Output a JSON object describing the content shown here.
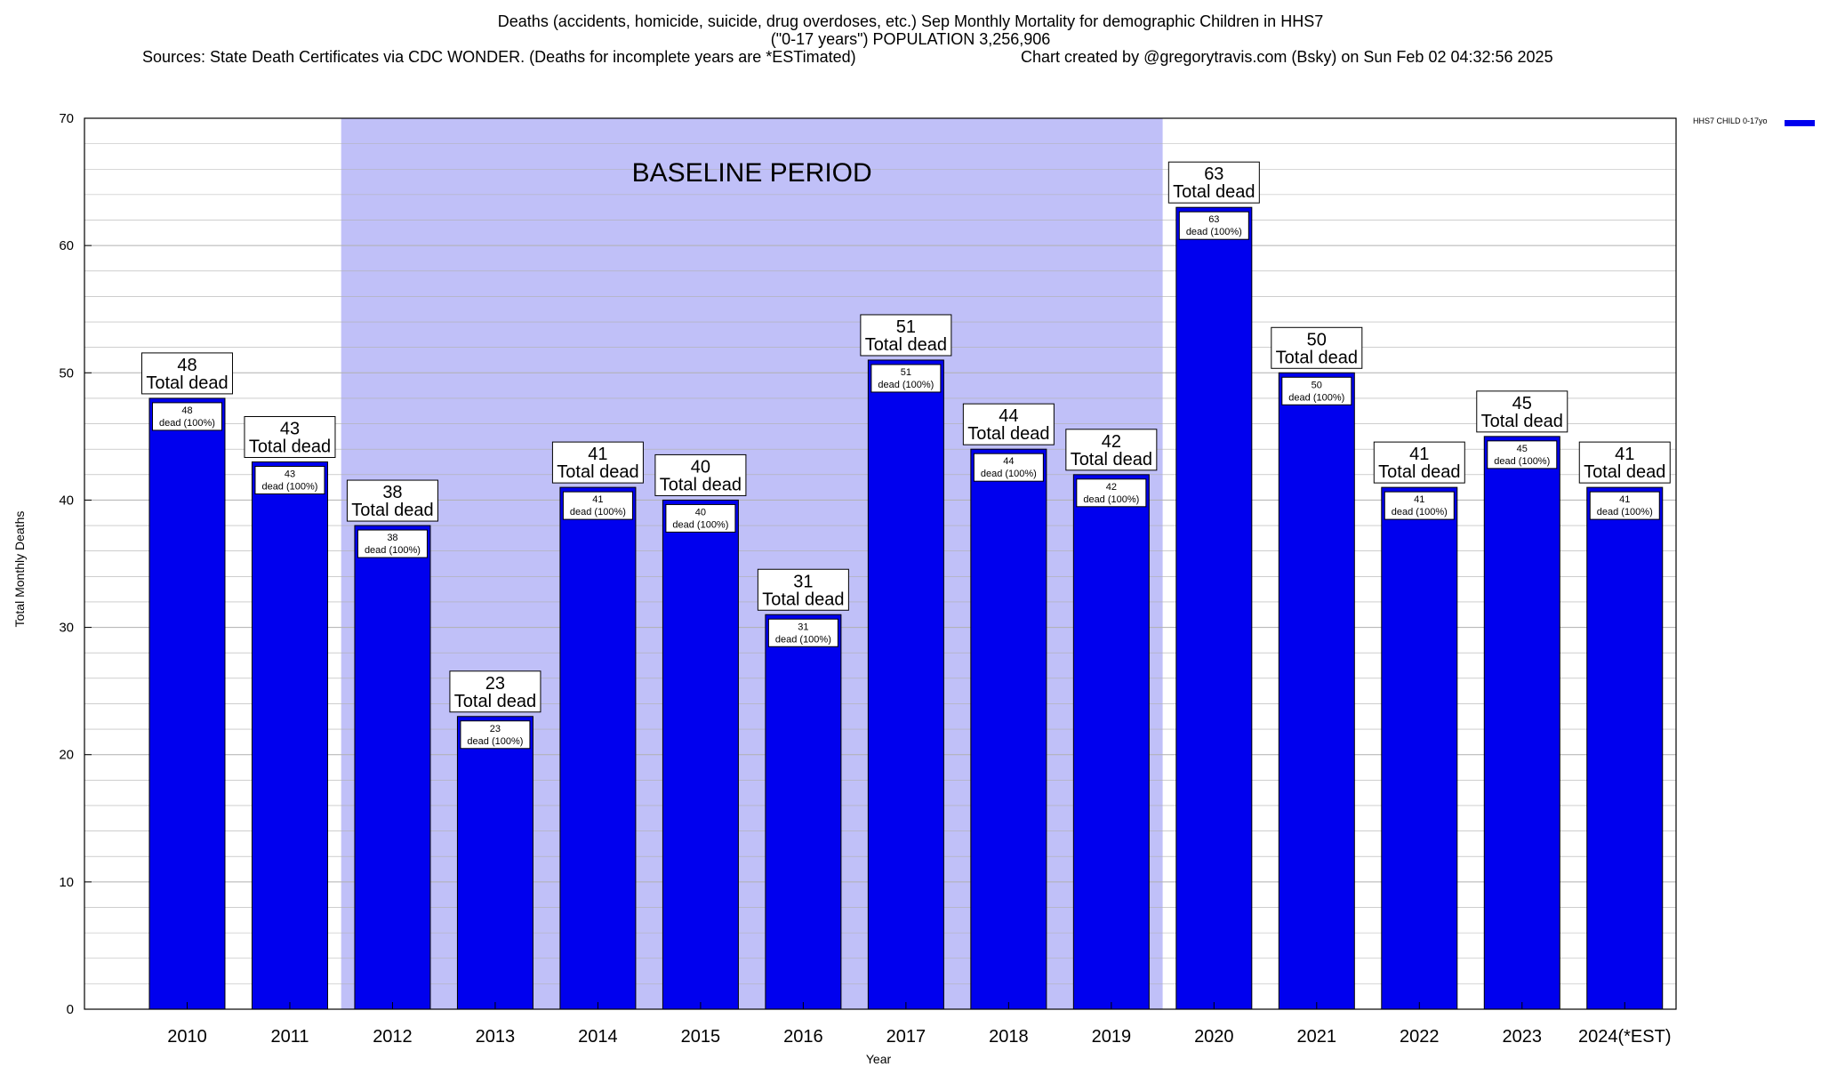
{
  "header": {
    "title_line1": "Deaths (accidents, homicide, suicide, drug overdoses, etc.) Sep Monthly Mortality for demographic Children in HHS7",
    "title_line2": "(\"0-17 years\") POPULATION 3,256,906",
    "sources": "Sources: State Death Certificates via CDC WONDER. (Deaths for incomplete years are *ESTimated)",
    "credit": "Chart created by @gregorytravis.com (Bsky) on Sun Feb 02 04:32:56 2025"
  },
  "colors": {
    "bar": "#0000ee",
    "baseline_shade": "#c0c0f8",
    "grid": "#b0b0b0"
  },
  "chart_data": {
    "type": "bar",
    "title": "Deaths (accidents, homicide, suicide, drug overdoses, etc.) Sep Monthly Mortality for demographic Children in HHS7",
    "xlabel": "Year",
    "ylabel": "Total Monthly Deaths",
    "ylim": [
      0,
      70
    ],
    "yticks": [
      0,
      10,
      20,
      30,
      40,
      50,
      60,
      70
    ],
    "grid": true,
    "legend_position": "top-right",
    "categories": [
      "2010",
      "2011",
      "2012",
      "2013",
      "2014",
      "2015",
      "2016",
      "2017",
      "2018",
      "2019",
      "2020",
      "2021",
      "2022",
      "2023",
      "2024(*EST)"
    ],
    "series": [
      {
        "name": "HHS7 CHILD 0-17yo",
        "values": [
          48,
          43,
          38,
          23,
          41,
          40,
          31,
          51,
          44,
          42,
          63,
          50,
          41,
          45,
          41
        ]
      }
    ],
    "bar_label_total": "Total dead",
    "bar_label_dead": "dead (100%)",
    "baseline": {
      "label": "BASELINE PERIOD",
      "from": "2012",
      "to": "2019"
    }
  }
}
